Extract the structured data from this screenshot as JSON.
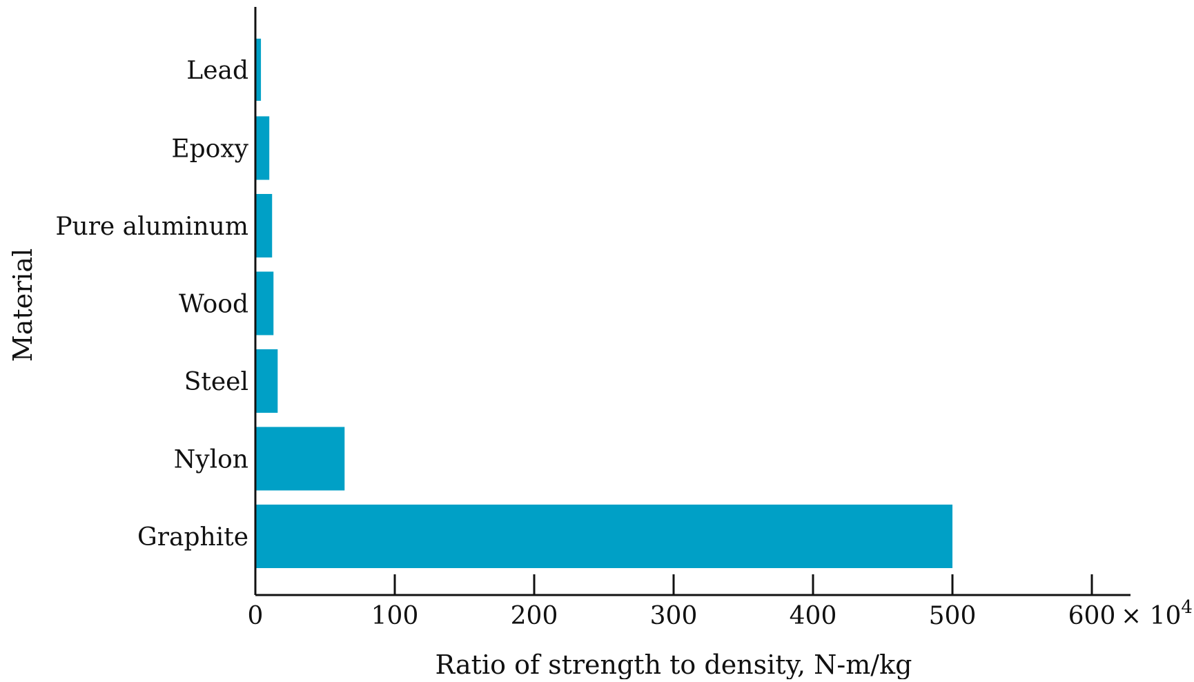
{
  "chart_data": {
    "type": "bar",
    "orientation": "horizontal",
    "categories": [
      "Lead",
      "Epoxy",
      "Pure aluminum",
      "Wood",
      "Steel",
      "Nylon",
      "Graphite"
    ],
    "values": [
      4,
      10,
      12,
      13,
      16,
      64,
      500
    ],
    "title": "",
    "xlabel": "Ratio of strength to density, N-m/kg",
    "ylabel": "Material",
    "xlim": [
      0,
      600
    ],
    "xticks": [
      0,
      100,
      200,
      300,
      400,
      500,
      600
    ],
    "x_multiplier_label": "× 10",
    "x_multiplier_exponent": "4",
    "grid": false,
    "bar_color": "#00a0c6"
  }
}
